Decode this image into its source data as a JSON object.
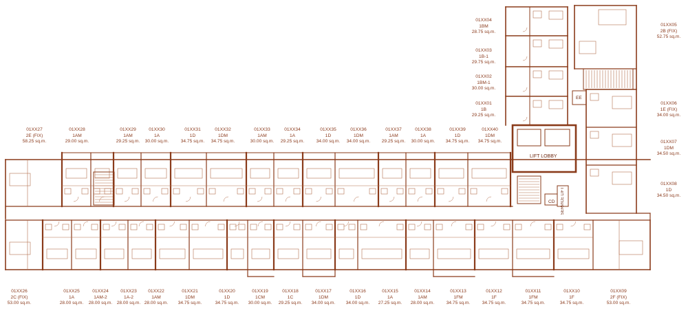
{
  "plan": {
    "colors": {
      "wall": "#8a3b1a",
      "wall_light": "#b5704f",
      "text": "#8a3a1c",
      "background": "#ffffff"
    },
    "top_units": [
      {
        "code": "01XX27",
        "type": "2E (FIX)",
        "area": "58.25 sq.m."
      },
      {
        "code": "01XX28",
        "type": "1AM",
        "area": "29.00 sq.m."
      },
      {
        "code": "01XX29",
        "type": "1AM",
        "area": "29.25 sq.m."
      },
      {
        "code": "01XX30",
        "type": "1A",
        "area": "30.00 sq.m."
      },
      {
        "code": "01XX31",
        "type": "1D",
        "area": "34.75 sq.m."
      },
      {
        "code": "01XX32",
        "type": "1DM",
        "area": "34.75 sq.m."
      },
      {
        "code": "01XX33",
        "type": "1AM",
        "area": "30.00 sq.m."
      },
      {
        "code": "01XX34",
        "type": "1A",
        "area": "29.25 sq.m."
      },
      {
        "code": "01XX35",
        "type": "1D",
        "area": "34.00 sq.m."
      },
      {
        "code": "01XX36",
        "type": "1DM",
        "area": "34.00 sq.m."
      },
      {
        "code": "01XX37",
        "type": "1AM",
        "area": "29.25 sq.m."
      },
      {
        "code": "01XX38",
        "type": "1A",
        "area": "30.00 sq.m."
      },
      {
        "code": "01XX39",
        "type": "1D",
        "area": "34.75 sq.m."
      },
      {
        "code": "01XX40",
        "type": "1DM",
        "area": "34.75 sq.m."
      }
    ],
    "bottom_units": [
      {
        "code": "01XX26",
        "type": "2C (FIX)",
        "area": "53.00 sq.m."
      },
      {
        "code": "01XX25",
        "type": "1A",
        "area": "28.00 sq.m."
      },
      {
        "code": "01XX24",
        "type": "1AM-2",
        "area": "28.00 sq.m."
      },
      {
        "code": "01XX23",
        "type": "1A-2",
        "area": "28.00 sq.m."
      },
      {
        "code": "01XX22",
        "type": "1AM",
        "area": "28.00 sq.m."
      },
      {
        "code": "01XX21",
        "type": "1DM",
        "area": "34.75 sq.m."
      },
      {
        "code": "01XX20",
        "type": "1D",
        "area": "34.75 sq.m."
      },
      {
        "code": "01XX19",
        "type": "1CM",
        "area": "30.00 sq.m."
      },
      {
        "code": "01XX18",
        "type": "1C",
        "area": "29.25 sq.m."
      },
      {
        "code": "01XX17",
        "type": "1DM",
        "area": "34.00 sq.m."
      },
      {
        "code": "01XX16",
        "type": "1D",
        "area": "34.00 sq.m."
      },
      {
        "code": "01XX15",
        "type": "1A",
        "area": "27.25 sq.m."
      },
      {
        "code": "01XX14",
        "type": "1AM",
        "area": "28.00 sq.m."
      },
      {
        "code": "01XX13",
        "type": "1FM",
        "area": "34.75 sq.m."
      },
      {
        "code": "01XX12",
        "type": "1F",
        "area": "34.75 sq.m."
      },
      {
        "code": "01XX11",
        "type": "1FM",
        "area": "34.75 sq.m."
      },
      {
        "code": "01XX10",
        "type": "1F",
        "area": "34.75 sq.m."
      },
      {
        "code": "01XX09",
        "type": "2F (FIX)",
        "area": "53.00 sq.m."
      }
    ],
    "tower_units": [
      {
        "code": "01XX04",
        "type": "1BM",
        "area": "28.75 sq.m."
      },
      {
        "code": "01XX03",
        "type": "1B-1",
        "area": "29.75 sq.m."
      },
      {
        "code": "01XX02",
        "type": "1BM-1",
        "area": "30.00 sq.m."
      },
      {
        "code": "01XX01",
        "type": "1B",
        "area": "29.25 sq.m."
      }
    ],
    "right_units": [
      {
        "code": "01XX05",
        "type": "2B (FIX)",
        "area": "52.75 sq.m."
      },
      {
        "code": "01XX06",
        "type": "1E (FIX)",
        "area": "34.00 sq.m."
      },
      {
        "code": "01XX07",
        "type": "1DM",
        "area": "34.50 sq.m."
      },
      {
        "code": "01XX08",
        "type": "1D",
        "area": "34.50 sq.m."
      }
    ],
    "rooms": {
      "lift_lobby": "LIFT LOBBY",
      "ee": "EE",
      "cd": "CD",
      "service_lift": "SERVICE LIFT"
    }
  }
}
